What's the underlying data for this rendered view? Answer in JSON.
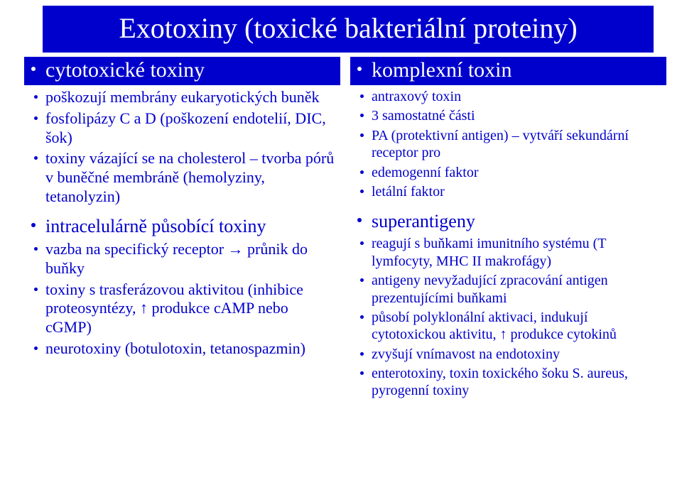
{
  "colors": {
    "band_bg": "#0000cc",
    "band_fg": "#ffffff",
    "text": "#0000cc",
    "page_bg": "#ffffff"
  },
  "title": "Exotoxiny (toxické bakteriální proteiny)",
  "left": {
    "head1": "cytotoxické toxiny",
    "block1": [
      "poškozují membrány eukaryotických buněk",
      "fosfolipázy C a D (poškození endotelií, DIC, šok)",
      "toxiny vázající se na cholesterol – tvorba pórů v buněčné membráně (hemolyziny, tetanolyzin)"
    ],
    "head2": "intracelulárně působící toxiny",
    "block2": [
      "vazba na specifický receptor → průnik do buňky",
      "toxiny s trasferázovou aktivitou (inhibice proteosyntézy, ↑ produkce cAMP nebo cGMP)",
      "neurotoxiny (botulotoxin, tetanospazmin)"
    ]
  },
  "right": {
    "head1": "komplexní toxin",
    "block1": [
      "antraxový toxin",
      "3 samostatné části",
      "PA (protektivní antigen) – vytváří sekundární receptor pro",
      "edemogenní faktor",
      "letální faktor"
    ],
    "head2": "superantigeny",
    "block2": [
      "reagují s buňkami imunitního systému (T lymfocyty, MHC II makrofágy)",
      "antigeny nevyžadující zpracování antigen prezentujícími buňkami",
      "působí polyklonální aktivaci, indukují cytotoxickou aktivitu, ↑ produkce cytokinů",
      "zvyšují vnímavost na endotoxiny",
      " enterotoxiny, toxin toxického šoku S. aureus, pyrogenní toxiny"
    ]
  }
}
